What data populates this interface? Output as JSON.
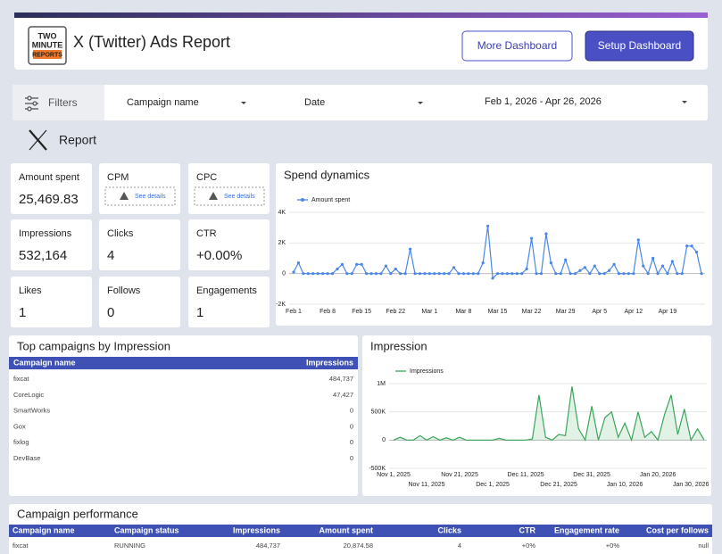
{
  "header": {
    "logo": [
      "TWO",
      "MINUTE",
      "REPORTS"
    ],
    "title": "X (Twitter) Ads Report",
    "buttons": [
      "More Dashboard",
      "Setup Dashboard"
    ]
  },
  "filters": {
    "label": "Filters",
    "controls": [
      "Campaign name",
      "Date",
      "Feb 1, 2026 - Apr 26, 2026"
    ]
  },
  "section": "Report",
  "kpis": [
    {
      "label": "Amount spent",
      "value": "25,469.83"
    },
    {
      "label": "CPM",
      "note": "See details"
    },
    {
      "label": "CPC",
      "note": "See details"
    },
    {
      "label": "Impressions",
      "value": "532,164"
    },
    {
      "label": "Clicks",
      "value": "4"
    },
    {
      "label": "CTR",
      "value": "+0.00%"
    },
    {
      "label": "Likes",
      "value": "1"
    },
    {
      "label": "Follows",
      "value": "0"
    },
    {
      "label": "Engagements",
      "value": "1"
    }
  ],
  "chart_data": [
    {
      "type": "line",
      "title": "Spend dynamics",
      "markers": true,
      "grid": true,
      "categories": [
        "Feb 1",
        null,
        null,
        null,
        null,
        null,
        null,
        "Feb 8",
        null,
        null,
        null,
        null,
        null,
        null,
        "Feb 15",
        null,
        null,
        null,
        null,
        null,
        null,
        "Feb 22",
        null,
        null,
        null,
        null,
        null,
        null,
        "Mar 1",
        null,
        null,
        null,
        null,
        null,
        null,
        "Mar 8",
        null,
        null,
        null,
        null,
        null,
        null,
        "Mar 15",
        null,
        null,
        null,
        null,
        null,
        null,
        "Mar 22",
        null,
        null,
        null,
        null,
        null,
        null,
        "Mar 29",
        null,
        null,
        null,
        null,
        null,
        null,
        "Apr 5",
        null,
        null,
        null,
        null,
        null,
        null,
        "Apr 12",
        null,
        null,
        null,
        null,
        null,
        null,
        "Apr 19",
        null,
        null,
        null,
        null,
        null,
        null,
        null
      ],
      "series": [
        {
          "name": "Amount spent",
          "color": "#4a86e8",
          "values": [
            100,
            700,
            0,
            0,
            0,
            0,
            0,
            0,
            0,
            300,
            600,
            0,
            0,
            600,
            600,
            0,
            0,
            0,
            0,
            500,
            0,
            300,
            0,
            0,
            1600,
            0,
            0,
            0,
            0,
            0,
            0,
            0,
            0,
            400,
            0,
            0,
            0,
            0,
            0,
            700,
            3100,
            -300,
            0,
            0,
            0,
            0,
            0,
            0,
            300,
            2300,
            0,
            0,
            2600,
            700,
            0,
            0,
            900,
            0,
            0,
            200,
            400,
            0,
            500,
            0,
            0,
            200,
            600,
            0,
            0,
            0,
            0,
            2200,
            500,
            0,
            1000,
            0,
            500,
            0,
            800,
            0,
            0,
            1800,
            1800,
            1400,
            0
          ]
        }
      ],
      "ylim": [
        -2000,
        4000
      ],
      "yticks": [
        {
          "value": -2000,
          "label": "-2K"
        },
        0,
        {
          "value": 2000,
          "label": "2K"
        },
        {
          "value": 4000,
          "label": "4K"
        }
      ]
    },
    {
      "type": "line",
      "title": "Impression",
      "area": true,
      "grid": true,
      "categories": [
        "Nov 1, 2025",
        null,
        null,
        null,
        null,
        "Nov 11, 2025",
        null,
        null,
        null,
        null,
        "Nov 21, 2025",
        null,
        null,
        null,
        null,
        "Dec 1, 2025",
        null,
        null,
        null,
        null,
        "Dec 11, 2025",
        null,
        null,
        null,
        null,
        "Dec 21, 2025",
        null,
        null,
        null,
        null,
        "Dec 31, 2025",
        null,
        null,
        null,
        null,
        "Jan 10, 2026",
        null,
        null,
        null,
        null,
        "Jan 20, 2026",
        null,
        null,
        null,
        null,
        "Jan 30, 2026",
        null,
        null
      ],
      "series": [
        {
          "name": "Impressions",
          "color": "#3aa55a",
          "values": [
            0,
            50000,
            0,
            0,
            80000,
            0,
            60000,
            0,
            40000,
            0,
            50000,
            0,
            0,
            0,
            0,
            0,
            30000,
            0,
            0,
            0,
            0,
            20000,
            800000,
            50000,
            0,
            100000,
            80000,
            950000,
            200000,
            0,
            600000,
            0,
            400000,
            500000,
            50000,
            300000,
            0,
            500000,
            50000,
            150000,
            0,
            450000,
            800000,
            100000,
            550000,
            0,
            200000,
            0
          ]
        }
      ],
      "ylim": [
        -500000,
        1000000
      ],
      "yticks": [
        {
          "value": -500000,
          "label": "-500K"
        },
        0,
        {
          "value": 500000,
          "label": "500K"
        },
        {
          "value": 1000000,
          "label": "1M"
        }
      ]
    }
  ],
  "top_campaigns": {
    "title": "Top campaigns by Impression",
    "columns": [
      "Campaign name",
      "Impressions"
    ],
    "rows": [
      [
        "fixcat",
        "484,737"
      ],
      [
        "CoreLogic",
        "47,427"
      ],
      [
        "SmartWorks",
        "0"
      ],
      [
        "Gox",
        "0"
      ],
      [
        "fixlog",
        "0"
      ],
      [
        "DevBase",
        "0"
      ]
    ]
  },
  "campaign_performance": {
    "title": "Campaign performance",
    "columns": [
      "Campaign name",
      "Campaign status",
      "Impressions",
      "Amount spent",
      "Clicks",
      "CTR",
      "Engagement rate",
      "Cost per follows"
    ],
    "rows": [
      [
        "fixcat",
        "RUNNING",
        "484,737",
        "20,874.58",
        "4",
        "+0%",
        "+0%",
        "null"
      ]
    ]
  }
}
